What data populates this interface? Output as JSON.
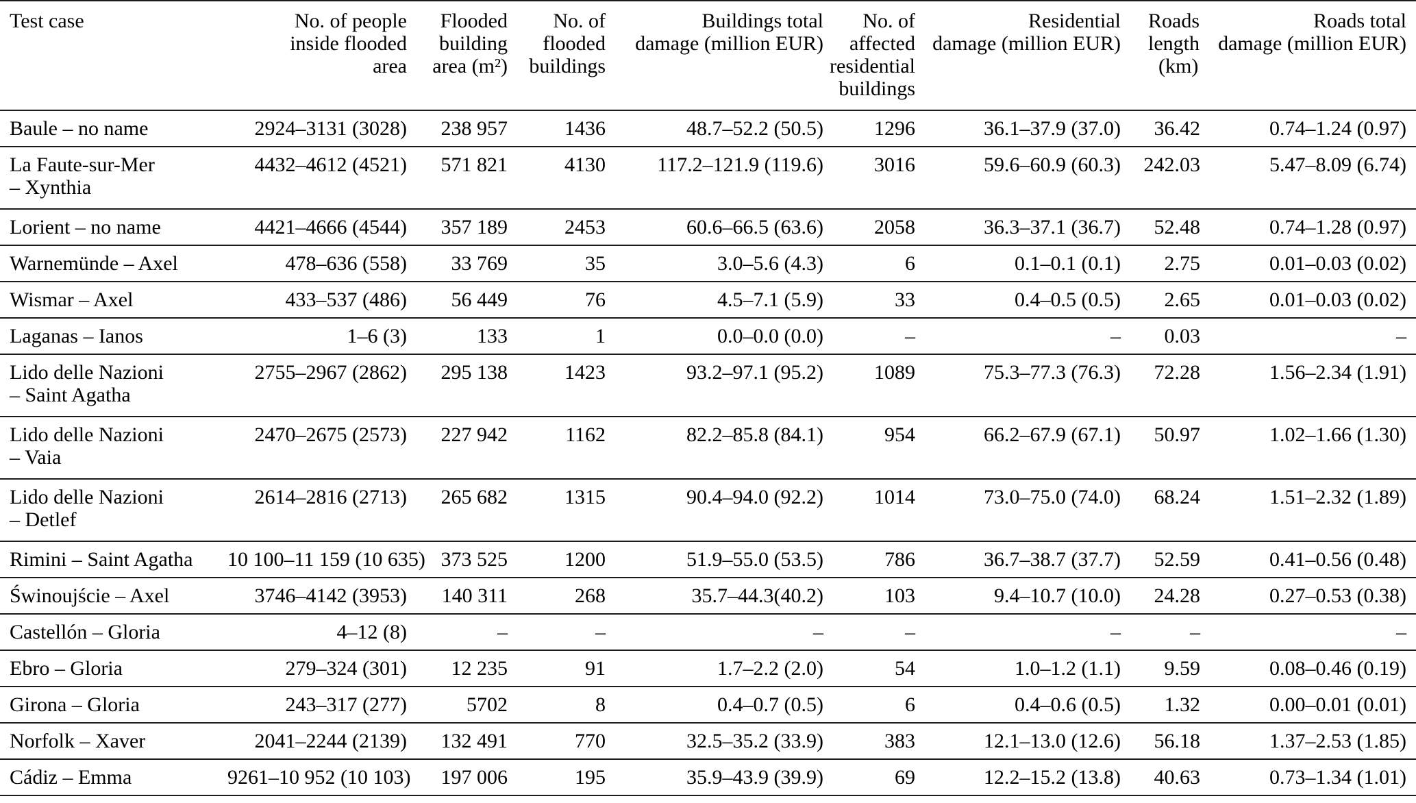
{
  "table": {
    "title": "Flood test case damage summary table",
    "columns": [
      {
        "label": "Test case",
        "align": "left"
      },
      {
        "label": "No. of people\ninside flooded\narea",
        "align": "right"
      },
      {
        "label": "Flooded\nbuilding\narea (m²)",
        "align": "right"
      },
      {
        "label": "No. of\nflooded\nbuildings",
        "align": "right"
      },
      {
        "label": "Buildings total\ndamage (million EUR)",
        "align": "right"
      },
      {
        "label": "No. of\naffected\nresidential\nbuildings",
        "align": "right"
      },
      {
        "label": "Residential\ndamage (million EUR)",
        "align": "right"
      },
      {
        "label": "Roads\nlength\n  (km)",
        "align": "left"
      },
      {
        "label": "Roads total\ndamage (million EUR)",
        "align": "right"
      }
    ],
    "rows": [
      {
        "cells": [
          "Baule – no name",
          "2924–3131 (3028)",
          "238 957",
          "1436",
          "48.7–52.2 (50.5)",
          "1296",
          "36.1–37.9 (37.0)",
          "36.42",
          "0.74–1.24 (0.97)"
        ]
      },
      {
        "cells": [
          "La Faute-sur-Mer\n– Xynthia",
          "4432–4612 (4521)",
          "571 821",
          "4130",
          "117.2–121.9 (119.6)",
          "3016",
          "59.6–60.9 (60.3)",
          "242.03",
          "5.47–8.09 (6.74)"
        ]
      },
      {
        "cells": [
          "Lorient – no name",
          "4421–4666 (4544)",
          "357 189",
          "2453",
          "60.6–66.5 (63.6)",
          "2058",
          "36.3–37.1 (36.7)",
          "52.48",
          "0.74–1.28 (0.97)"
        ]
      },
      {
        "cells": [
          "Warnemünde – Axel",
          "478–636 (558)",
          "33 769",
          "35",
          "3.0–5.6 (4.3)",
          "6",
          "0.1–0.1 (0.1)",
          "2.75",
          "0.01–0.03 (0.02)"
        ]
      },
      {
        "cells": [
          "Wismar – Axel",
          "433–537 (486)",
          "56 449",
          "76",
          "4.5–7.1 (5.9)",
          "33",
          "0.4–0.5 (0.5)",
          "2.65",
          "0.01–0.03 (0.02)"
        ]
      },
      {
        "cells": [
          "Laganas – Ianos",
          "1–6 (3)",
          "133",
          "1",
          "0.0–0.0 (0.0)",
          "–",
          "–",
          "0.03",
          "–"
        ]
      },
      {
        "cells": [
          "Lido delle Nazioni\n– Saint Agatha",
          "2755–2967 (2862)",
          "295 138",
          "1423",
          "93.2–97.1 (95.2)",
          "1089",
          "75.3–77.3 (76.3)",
          "72.28",
          "1.56–2.34 (1.91)"
        ]
      },
      {
        "cells": [
          "Lido delle Nazioni\n– Vaia",
          "2470–2675 (2573)",
          "227 942",
          "1162",
          "82.2–85.8 (84.1)",
          "954",
          "66.2–67.9 (67.1)",
          "50.97",
          "1.02–1.66 (1.30)"
        ]
      },
      {
        "cells": [
          "Lido delle Nazioni\n– Detlef",
          "2614–2816 (2713)",
          "265 682",
          "1315",
          "90.4–94.0 (92.2)",
          "1014",
          "73.0–75.0 (74.0)",
          "68.24",
          "1.51–2.32 (1.89)"
        ]
      },
      {
        "cells": [
          "Rimini – Saint Agatha",
          "10 100–11 159 (10 635)",
          "373 525",
          "1200",
          "51.9–55.0 (53.5)",
          "786",
          "36.7–38.7 (37.7)",
          "52.59",
          "0.41–0.56 (0.48)"
        ]
      },
      {
        "cells": [
          "Świnoujście – Axel",
          "3746–4142 (3953)",
          "140 311",
          "268",
          "35.7–44.3(40.2)",
          "103",
          "9.4–10.7 (10.0)",
          "24.28",
          "0.27–0.53 (0.38)"
        ]
      },
      {
        "cells": [
          "Castellón – Gloria",
          "4–12 (8)",
          "–",
          "–",
          "–",
          "–",
          "–",
          "–",
          "–"
        ]
      },
      {
        "cells": [
          "Ebro – Gloria",
          "279–324 (301)",
          "12 235",
          "91",
          "1.7–2.2 (2.0)",
          "54",
          "1.0–1.2 (1.1)",
          "9.59",
          "0.08–0.46 (0.19)"
        ]
      },
      {
        "cells": [
          "Girona – Gloria",
          "243–317 (277)",
          "5702",
          "8",
          "0.4–0.7 (0.5)",
          "6",
          "0.4–0.6 (0.5)",
          "1.32",
          "0.00–0.01 (0.01)"
        ]
      },
      {
        "cells": [
          "Norfolk – Xaver",
          "2041–2244 (2139)",
          "132 491",
          "770",
          "32.5–35.2 (33.9)",
          "383",
          "12.1–13.0 (12.6)",
          "56.18",
          "1.37–2.53 (1.85)"
        ]
      },
      {
        "cells": [
          "Cádiz – Emma",
          "9261–10 952 (10 103)",
          "197 006",
          "195",
          "35.9–43.9 (39.9)",
          "69",
          "12.2–15.2 (13.8)",
          "40.63",
          "0.73–1.34 (1.01)"
        ]
      }
    ]
  }
}
